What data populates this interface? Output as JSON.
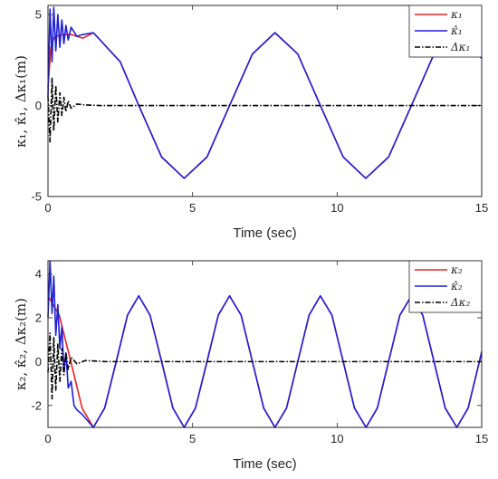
{
  "chart_data": [
    {
      "type": "line",
      "xlabel": "Time (sec)",
      "ylabel": "κ₁, κ̂₁, Δκ₁(m)",
      "xlim": [
        0,
        15
      ],
      "ylim": [
        -5,
        5.5
      ],
      "xticks": [
        "0",
        "5",
        "10",
        "15"
      ],
      "yticks": [
        "-5",
        "0",
        "5"
      ],
      "ytick_values": [
        -5,
        0,
        5
      ],
      "grid": false,
      "legend_position": "top-right",
      "series": [
        {
          "name": "κ₁",
          "color": "#e8212b",
          "line_style": "solid",
          "description": "reference: rises from 0 to about 3.9 at t≈0.6, then 4·sin(t) (amplitude 4, period 2π)",
          "x": [
            0,
            0.1,
            0.2,
            0.3,
            0.5,
            0.8,
            1.2,
            1.57,
            2.5,
            3.14,
            3.93,
            4.71,
            5.5,
            6.28,
            7.07,
            7.85,
            8.64,
            9.42,
            10.21,
            10.99,
            11.78,
            12.57,
            13.35,
            14.14,
            15
          ],
          "values": [
            1.0,
            3.2,
            3.7,
            3.8,
            3.9,
            3.9,
            3.7,
            4.0,
            2.4,
            0.0,
            -2.83,
            -4.0,
            -2.83,
            0.0,
            2.83,
            4.0,
            2.83,
            0.0,
            -2.83,
            -4.0,
            -2.83,
            0.0,
            2.83,
            4.0,
            2.6
          ]
        },
        {
          "name": "κ̂₁",
          "color": "#1f1fd6",
          "line_style": "solid",
          "description": "estimate: decaying oscillation around the reference (peak ≈5.4 at t≈0.2), converging by t≈1.5, then tracks 4·sin(t)",
          "x": [
            0,
            0.07,
            0.14,
            0.2,
            0.27,
            0.34,
            0.41,
            0.48,
            0.55,
            0.62,
            0.7,
            0.8,
            1.0,
            1.2,
            1.57,
            2.5,
            3.14,
            3.93,
            4.71,
            5.5,
            6.28,
            7.07,
            7.85,
            8.64,
            9.42,
            10.21,
            10.99,
            11.78,
            12.57,
            13.35,
            14.14,
            15
          ],
          "values": [
            0.5,
            5.3,
            2.4,
            5.4,
            3.0,
            5.0,
            3.2,
            4.7,
            3.4,
            4.4,
            3.6,
            4.3,
            3.8,
            3.9,
            4.0,
            2.4,
            0.0,
            -2.83,
            -4.0,
            -2.83,
            0.0,
            2.83,
            4.0,
            2.83,
            0.0,
            -2.83,
            -4.0,
            -2.83,
            0.0,
            2.83,
            4.0,
            2.6
          ]
        },
        {
          "name": "Δκ₁",
          "color": "#000000",
          "line_style": "dash-dot",
          "description": "error: decaying oscillation (≈±2) that settles to 0 by t≈1.8",
          "x": [
            0,
            0.07,
            0.14,
            0.2,
            0.27,
            0.34,
            0.41,
            0.48,
            0.55,
            0.62,
            0.7,
            0.8,
            1.0,
            1.3,
            1.8,
            3,
            5,
            7.5,
            10,
            12.5,
            15
          ],
          "values": [
            0.5,
            -2.0,
            1.5,
            -1.4,
            1.1,
            -0.9,
            0.7,
            -0.55,
            0.45,
            -0.35,
            0.25,
            -0.15,
            0.08,
            0.03,
            0.0,
            0.0,
            0.0,
            0.0,
            0.0,
            0.0,
            0.0
          ]
        }
      ]
    },
    {
      "type": "line",
      "xlabel": "Time (sec)",
      "ylabel": "κ₂, κ̂₂, Δκ₂(m)",
      "xlim": [
        0,
        15
      ],
      "ylim": [
        -3,
        4.6
      ],
      "xticks": [
        "0",
        "5",
        "10",
        "15"
      ],
      "yticks": [
        "-2",
        "0",
        "2",
        "4"
      ],
      "ytick_values": [
        -2,
        0,
        2,
        4
      ],
      "grid": false,
      "legend_position": "top-right",
      "series": [
        {
          "name": "κ₂",
          "color": "#e8212b",
          "line_style": "solid",
          "description": "reference: 3·cos(2t) (amplitude 3, period π)",
          "x": [
            0,
            0.39,
            0.79,
            1.18,
            1.57,
            1.96,
            2.36,
            2.75,
            3.14,
            3.53,
            3.93,
            4.32,
            4.71,
            5.1,
            5.5,
            5.89,
            6.28,
            6.68,
            7.07,
            7.46,
            7.85,
            8.25,
            8.64,
            9.03,
            9.42,
            9.82,
            10.21,
            10.6,
            11.0,
            11.39,
            11.78,
            12.17,
            12.57,
            12.96,
            13.35,
            13.74,
            14.14,
            14.53,
            14.92,
            15
          ],
          "values": [
            3.0,
            2.12,
            0.0,
            -2.12,
            -3.0,
            -2.12,
            0.0,
            2.12,
            3.0,
            2.12,
            0.0,
            -2.12,
            -3.0,
            -2.12,
            0.0,
            2.12,
            3.0,
            2.12,
            0.0,
            -2.12,
            -3.0,
            -2.12,
            0.0,
            2.12,
            3.0,
            2.12,
            0.0,
            -2.12,
            -3.0,
            -2.12,
            0.0,
            2.12,
            3.0,
            2.12,
            0.0,
            -2.12,
            -3.0,
            -2.12,
            0.0,
            0.45
          ]
        },
        {
          "name": "κ̂₂",
          "color": "#1f1fd6",
          "line_style": "solid",
          "description": "estimate: large initial oscillation (peak ≈4.6 at t≈0.1), converges to the reference by t≈1.5, then tracks 3·cos(2t)",
          "x": [
            0,
            0.07,
            0.14,
            0.2,
            0.27,
            0.34,
            0.41,
            0.48,
            0.55,
            0.62,
            0.7,
            0.8,
            0.9,
            1.0,
            1.18,
            1.57,
            1.96,
            2.36,
            2.75,
            3.14,
            3.53,
            3.93,
            4.32,
            4.71,
            5.1,
            5.5,
            5.89,
            6.28,
            6.68,
            7.07,
            7.46,
            7.85,
            8.25,
            8.64,
            9.03,
            9.42,
            9.82,
            10.21,
            10.6,
            11.0,
            11.39,
            11.78,
            12.17,
            12.57,
            12.96,
            13.35,
            13.74,
            14.14,
            14.53,
            14.92,
            15
          ],
          "values": [
            2.0,
            4.6,
            2.2,
            3.9,
            1.2,
            2.6,
            0.6,
            1.6,
            -0.4,
            0.4,
            -1.2,
            -0.9,
            -2.0,
            -2.2,
            -2.4,
            -3.0,
            -2.12,
            0.0,
            2.12,
            3.0,
            2.12,
            0.0,
            -2.12,
            -3.0,
            -2.12,
            0.0,
            2.12,
            3.0,
            2.12,
            0.0,
            -2.12,
            -3.0,
            -2.12,
            0.0,
            2.12,
            3.0,
            2.12,
            0.0,
            -2.12,
            -3.0,
            -2.12,
            0.0,
            2.12,
            3.0,
            2.12,
            0.0,
            -2.12,
            -3.0,
            -2.12,
            0.0,
            0.45
          ]
        },
        {
          "name": "Δκ₂",
          "color": "#000000",
          "line_style": "dash-dot",
          "description": "error: decaying oscillation (≈±1.7) that settles to 0 by t≈2",
          "x": [
            0,
            0.07,
            0.14,
            0.2,
            0.27,
            0.34,
            0.41,
            0.48,
            0.55,
            0.62,
            0.7,
            0.8,
            1.0,
            1.3,
            2.0,
            3,
            5,
            7.5,
            10,
            12.5,
            15
          ],
          "values": [
            -0.5,
            1.3,
            -1.7,
            1.1,
            -1.3,
            0.8,
            -0.9,
            0.6,
            -0.6,
            0.4,
            -0.35,
            0.2,
            -0.1,
            0.05,
            0.0,
            0.0,
            0.0,
            0.0,
            0.0,
            0.0,
            0.0
          ]
        }
      ]
    }
  ]
}
